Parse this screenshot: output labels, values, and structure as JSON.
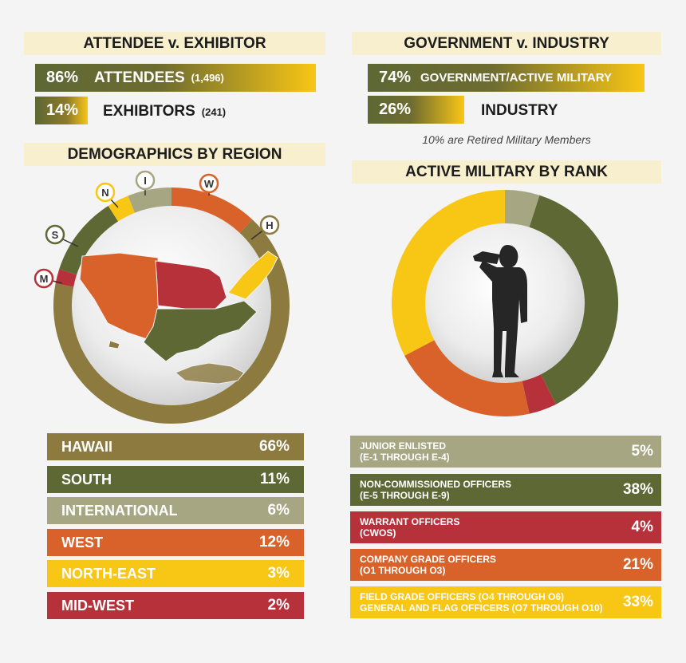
{
  "colors": {
    "hawaii": "#8c7a3f",
    "south": "#5d6834",
    "international": "#a6a683",
    "west": "#d9622b",
    "northeast": "#f8c615",
    "midwest": "#b7313b",
    "junior": "#a6a683",
    "nco": "#5d6834",
    "warrant": "#b7313b",
    "company": "#d9622b",
    "field": "#f8c615",
    "header_bg": "#f7efcd"
  },
  "attendee": {
    "header": "ATTENDEE v. EXHIBITOR",
    "rows": [
      {
        "pct": "86%",
        "label": "ATTENDEES",
        "sub": "(1,496)",
        "value": 86
      },
      {
        "pct": "14%",
        "label": "EXHIBITORS",
        "sub": "(241)",
        "value": 14
      }
    ]
  },
  "government": {
    "header": "GOVERNMENT v. INDUSTRY",
    "rows": [
      {
        "pct": "74%",
        "label": "GOVERNMENT/ACTIVE MILITARY",
        "value": 74
      },
      {
        "pct": "26%",
        "label": "INDUSTRY",
        "value": 26
      }
    ],
    "note": "10% are Retired Military Members"
  },
  "region": {
    "header": "DEMOGRAPHICS BY REGION",
    "markers": {
      "h": "H",
      "w": "W",
      "i": "I",
      "n": "N",
      "s": "S",
      "m": "M"
    }
  },
  "rank": {
    "header": "ACTIVE MILITARY BY RANK"
  },
  "chart_data": [
    {
      "type": "pie",
      "title": "DEMOGRAPHICS BY REGION",
      "categories": [
        "HAWAII",
        "SOUTH",
        "INTERNATIONAL",
        "WEST",
        "NORTH-EAST",
        "MID-WEST"
      ],
      "values": [
        66,
        11,
        6,
        12,
        3,
        2
      ],
      "labels": [
        "66%",
        "11%",
        "6%",
        "12%",
        "3%",
        "2%"
      ]
    },
    {
      "type": "pie",
      "title": "ACTIVE MILITARY BY RANK",
      "categories": [
        [
          "JUNIOR ENLISTED",
          "(E-1 THROUGH E-4)"
        ],
        [
          "NON-COMMISSIONED OFFICERS",
          "(E-5 THROUGH E-9)"
        ],
        [
          "WARRANT OFFICERS",
          "(CWOS)"
        ],
        [
          "COMPANY GRADE OFFICERS",
          "(O1 THROUGH O3)"
        ],
        [
          "FIELD GRADE OFFICERS (O4 THROUGH O6)",
          "GENERAL AND FLAG OFFICERS (O7 THROUGH O10)"
        ]
      ],
      "values": [
        5,
        38,
        4,
        21,
        33
      ],
      "labels": [
        "5%",
        "38%",
        "4%",
        "21%",
        "33%"
      ]
    }
  ]
}
